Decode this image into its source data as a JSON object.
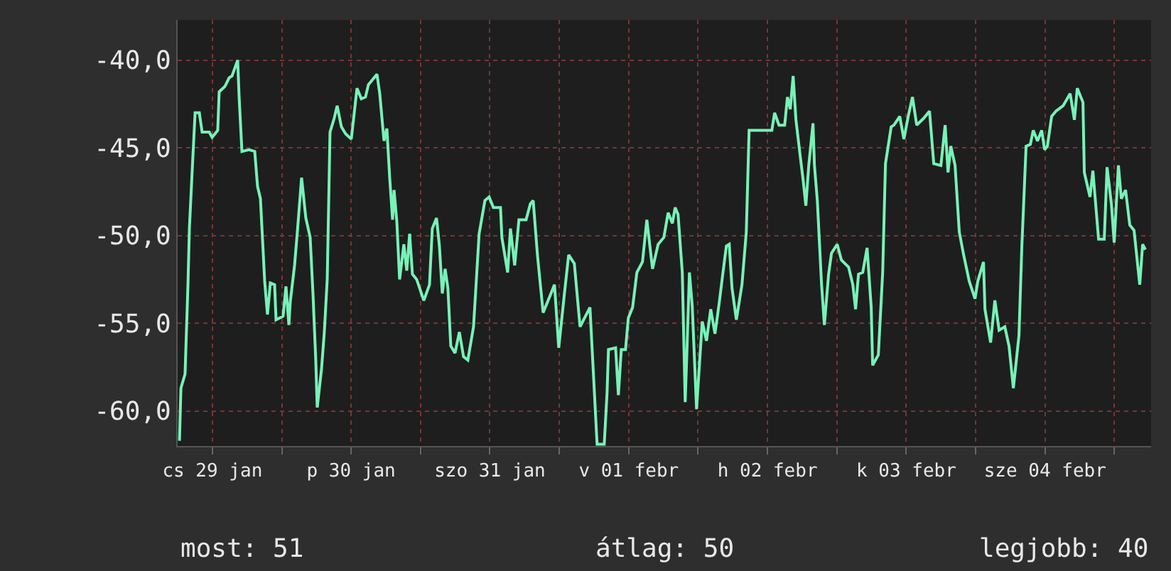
{
  "chart_data": {
    "type": "line",
    "line_style": "solid",
    "marker": "none",
    "grid": true,
    "xlim": [
      "--01-29T06:00",
      "--02-05T06:20"
    ],
    "xticks": [
      {
        "value": "--01-29T12:00",
        "label": "cs 29 jan"
      },
      {
        "value": "--01-30T00:00",
        "label": null
      },
      {
        "value": "--01-30T12:00",
        "label": "p 30 jan"
      },
      {
        "value": "--01-31T00:00",
        "label": null
      },
      {
        "value": "--01-31T12:00",
        "label": "szo 31 jan"
      },
      {
        "value": "--02-01T00:00",
        "label": null
      },
      {
        "value": "--02-01T12:00",
        "label": "v 01 febr"
      },
      {
        "value": "--02-02T00:00",
        "label": null
      },
      {
        "value": "--02-02T12:00",
        "label": "h 02 febr"
      },
      {
        "value": "--02-03T00:00",
        "label": null
      },
      {
        "value": "--02-03T12:00",
        "label": "k 03 febr"
      },
      {
        "value": "--02-04T00:00",
        "label": null
      },
      {
        "value": "--02-04T12:00",
        "label": "sze 04 febr"
      },
      {
        "value": "--02-05T00:00",
        "label": null
      }
    ],
    "ylim": [
      -62,
      -37.7
    ],
    "yticks": [
      {
        "value": -60,
        "label": "-60,0"
      },
      {
        "value": -55,
        "label": "-55,0"
      },
      {
        "value": -50,
        "label": "-50,0"
      },
      {
        "value": -45,
        "label": "-45,0"
      },
      {
        "value": -40,
        "label": "-40,0"
      }
    ],
    "annotations": [
      "most: 51",
      "átlag: 50",
      "legjobb: 40"
    ],
    "series": [
      {
        "color": "#77f2b8",
        "x": [
          "--01-29T06:19",
          "--01-29T06:34",
          "--01-29T07:17",
          "--01-29T07:47",
          "--01-29T08:02",
          "--01-29T08:31",
          "--01-29T09:01",
          "--01-29T09:45",
          "--01-29T10:14",
          "--01-29T11:28",
          "--01-29T11:58",
          "--01-29T12:56",
          "--01-29T13:11",
          "--01-29T14:10",
          "--01-29T14:55",
          "--01-29T15:24",
          "--01-29T16:23",
          "--01-29T16:38",
          "--01-29T17:07",
          "--01-29T18:21",
          "--01-29T19:20",
          "--01-29T19:49",
          "--01-29T20:19",
          "--01-29T21:03",
          "--01-29T21:32",
          "--01-29T22:02",
          "--01-29T22:46",
          "--01-29T23:01",
          "--01-30T00:14",
          "--01-30T00:44",
          "--01-30T01:14",
          "--01-30T01:28",
          "--01-30T02:13",
          "--01-30T02:42",
          "--01-30T03:26",
          "--01-30T04:10",
          "--01-30T04:55",
          "--01-30T05:24",
          "--01-30T05:53",
          "--01-30T06:08",
          "--01-30T06:53",
          "--01-30T07:22",
          "--01-30T07:52",
          "--01-30T08:21",
          "--01-30T09:05",
          "--01-30T09:35",
          "--01-30T10:19",
          "--01-30T11:03",
          "--01-30T12:02",
          "--01-30T13:01",
          "--01-30T13:46",
          "--01-30T14:29",
          "--01-30T14:59",
          "--01-30T15:43",
          "--01-30T16:28",
          "--01-30T16:57",
          "--01-30T17:41",
          "--01-30T18:11",
          "--01-30T18:40",
          "--01-30T19:10",
          "--01-30T19:25",
          "--01-30T19:54",
          "--01-30T20:23",
          "--01-30T21:07",
          "--01-30T21:37",
          "--01-30T22:07",
          "--01-30T22:36",
          "--01-30T23:20",
          "--01-31T00:34",
          "--01-31T01:33",
          "--01-31T02:02",
          "--01-31T02:46",
          "--01-31T03:16",
          "--01-31T03:46",
          "--01-31T04:15",
          "--01-31T04:44",
          "--01-31T05:14",
          "--01-31T05:58",
          "--01-31T06:43",
          "--01-31T07:26",
          "--01-31T08:11",
          "--01-31T09:10",
          "--01-31T10:08",
          "--01-31T11:08",
          "--01-31T11:52",
          "--01-31T12:36",
          "--01-31T13:50",
          "--01-31T14:04",
          "--01-31T15:04",
          "--01-31T15:33",
          "--01-31T16:17",
          "--01-31T17:01",
          "--01-31T18:15",
          "--01-31T18:59",
          "--01-31T19:29",
          "--01-31T20:13",
          "--01-31T21:12",
          "--01-31T22:26",
          "--01-31T23:10",
          "--01-31T23:54",
          "--02-01T00:53",
          "--02-01T01:37",
          "--02-01T02:36",
          "--02-01T03:35",
          "--02-01T05:18",
          "--02-01T06:32",
          "--02-01T07:46",
          "--02-01T08:15",
          "--02-01T08:30",
          "--02-01T09:44",
          "--02-01T10:13",
          "--02-01T10:43",
          "--02-01T11:27",
          "--02-01T11:56",
          "--02-01T12:40",
          "--02-01T13:25",
          "--02-01T14:23",
          "--02-01T15:08",
          "--02-01T16:07",
          "--02-01T17:05",
          "--02-01T18:05",
          "--02-01T18:49",
          "--02-01T19:33",
          "--02-01T20:02",
          "--02-01T20:32",
          "--02-01T21:16",
          "--02-01T21:46",
          "--02-01T22:01",
          "--02-01T22:30",
          "--02-01T22:59",
          "--02-01T23:44",
          "--02-02T00:43",
          "--02-02T01:27",
          "--02-02T02:11",
          "--02-02T02:55",
          "--02-02T03:40",
          "--02-02T04:09",
          "--02-02T04:53",
          "--02-02T05:23",
          "--02-02T05:52",
          "--02-02T06:37",
          "--02-02T07:35",
          "--02-02T08:20",
          "--02-02T08:49",
          "--02-02T12:45",
          "--02-02T13:14",
          "--02-02T13:59",
          "--02-02T14:58",
          "--02-02T15:27",
          "--02-02T15:56",
          "--02-02T16:26",
          "--02-02T16:55",
          "--02-02T17:40",
          "--02-02T18:09",
          "--02-02T18:38",
          "--02-02T19:08",
          "--02-02T19:52",
          "--02-02T20:07",
          "--02-02T20:37",
          "--02-02T21:21",
          "--02-02T21:50",
          "--02-02T22:34",
          "--02-02T23:04",
          "--02-03T00:03",
          "--02-03T00:47",
          "--02-03T02:01",
          "--02-03T02:45",
          "--02-03T03:14",
          "--02-03T03:44",
          "--02-03T04:28",
          "--02-03T05:13",
          "--02-03T05:56",
          "--02-03T06:11",
          "--02-03T07:10",
          "--02-03T07:55",
          "--02-03T08:24",
          "--02-03T09:23",
          "--02-03T09:52",
          "--02-03T10:52",
          "--02-03T11:35",
          "--02-03T12:20",
          "--02-03T13:04",
          "--02-03T13:48",
          "--02-03T15:02",
          "--02-03T16:01",
          "--02-03T16:45",
          "--02-03T17:59",
          "--02-03T18:43",
          "--02-03T19:13",
          "--02-03T19:42",
          "--02-03T20:26",
          "--02-03T21:10",
          "--02-03T21:55",
          "--02-03T22:53",
          "--02-03T23:53",
          "--02-04T00:22",
          "--02-04T01:21",
          "--02-04T01:36",
          "--02-04T02:35",
          "--02-04T03:19",
          "--02-04T04:03",
          "--02-04T05:02",
          "--02-04T05:46",
          "--02-04T06:31",
          "--02-04T07:29",
          "--02-04T07:59",
          "--02-04T08:43",
          "--02-04T09:27",
          "--02-04T09:57",
          "--02-04T10:41",
          "--02-04T11:25",
          "--02-04T11:55",
          "--02-04T12:24",
          "--02-04T13:08",
          "--02-04T13:53",
          "--02-04T15:07",
          "--02-04T16:20",
          "--02-04T17:04",
          "--02-04T17:34",
          "--02-04T18:33",
          "--02-04T18:47",
          "--02-04T19:46",
          "--02-04T20:16",
          "--02-04T21:15",
          "--02-04T22:14",
          "--02-04T22:43",
          "--02-04T23:28",
          "--02-04T23:57",
          "--02-05T00:41",
          "--02-05T01:11",
          "--02-05T01:55",
          "--02-05T02:39",
          "--02-05T03:23",
          "--02-05T04:22",
          "--02-05T04:52",
          "--02-05T05:21"
        ],
        "values": [
          -61.7,
          -58.7,
          -57.9,
          -52.8,
          -49.6,
          -46.3,
          -43.0,
          -43.0,
          -44.1,
          -44.1,
          -44.4,
          -44.0,
          -41.8,
          -41.5,
          -41.0,
          -40.9,
          -40.0,
          -42.1,
          -45.2,
          -45.1,
          -45.2,
          -47.2,
          -47.9,
          -52.6,
          -54.5,
          -52.7,
          -52.8,
          -54.8,
          -54.6,
          -52.9,
          -55.1,
          -53.8,
          -51.7,
          -49.8,
          -46.7,
          -49.0,
          -50.1,
          -53.3,
          -57.1,
          -59.8,
          -57.6,
          -55.5,
          -52.5,
          -44.1,
          -43.3,
          -42.6,
          -43.8,
          -44.2,
          -44.5,
          -41.6,
          -42.2,
          -42.1,
          -41.4,
          -41.1,
          -40.8,
          -41.9,
          -44.6,
          -43.9,
          -46.7,
          -49.1,
          -47.4,
          -49.2,
          -52.5,
          -50.5,
          -52.0,
          -49.9,
          -52.2,
          -52.5,
          -53.7,
          -52.8,
          -49.6,
          -49.0,
          -50.6,
          -53.3,
          -51.9,
          -53.0,
          -56.3,
          -56.7,
          -55.5,
          -56.9,
          -57.1,
          -55.2,
          -49.9,
          -48.0,
          -47.8,
          -48.4,
          -48.4,
          -50.1,
          -52.1,
          -49.6,
          -51.7,
          -49.1,
          -49.1,
          -48.2,
          -48.0,
          -51.1,
          -54.4,
          -53.4,
          -52.8,
          -56.4,
          -53.3,
          -51.1,
          -51.6,
          -55.2,
          -54.1,
          -61.9,
          -61.9,
          -59.0,
          -56.5,
          -56.4,
          -59.1,
          -56.5,
          -56.5,
          -54.7,
          -54.1,
          -52.1,
          -51.5,
          -49.1,
          -51.9,
          -50.5,
          -50.1,
          -48.7,
          -49.3,
          -48.4,
          -48.8,
          -52.1,
          -59.5,
          -57.1,
          -52.1,
          -54.0,
          -59.9,
          -54.9,
          -56.0,
          -54.2,
          -55.6,
          -53.8,
          -52.5,
          -50.6,
          -50.5,
          -53.0,
          -54.8,
          -52.8,
          -49.8,
          -44.0,
          -44.0,
          -43.0,
          -43.7,
          -43.7,
          -42.1,
          -42.8,
          -40.9,
          -43.4,
          -45.5,
          -46.8,
          -48.3,
          -46.0,
          -43.6,
          -46.0,
          -48.0,
          -52.8,
          -55.1,
          -52.2,
          -51.0,
          -50.5,
          -51.4,
          -51.8,
          -52.8,
          -54.2,
          -52.2,
          -52.1,
          -50.7,
          -54.1,
          -57.4,
          -56.8,
          -52.1,
          -45.9,
          -43.8,
          -43.7,
          -43.2,
          -44.5,
          -43.2,
          -42.1,
          -43.7,
          -43.3,
          -42.9,
          -45.9,
          -46.0,
          -43.7,
          -46.4,
          -44.9,
          -46.0,
          -49.8,
          -51.1,
          -52.6,
          -53.6,
          -52.6,
          -51.5,
          -54.2,
          -56.1,
          -53.7,
          -55.4,
          -55.2,
          -56.3,
          -58.7,
          -55.7,
          -50.6,
          -44.9,
          -44.8,
          -44.0,
          -44.6,
          -44.0,
          -45.1,
          -44.9,
          -43.2,
          -42.9,
          -42.6,
          -41.9,
          -43.4,
          -41.6,
          -42.4,
          -46.4,
          -47.8,
          -46.3,
          -50.2,
          -50.2,
          -46.1,
          -48.2,
          -50.4,
          -46.0,
          -47.9,
          -47.4,
          -49.4,
          -49.7,
          -52.8,
          -50.5,
          -50.8
        ]
      }
    ]
  }
}
